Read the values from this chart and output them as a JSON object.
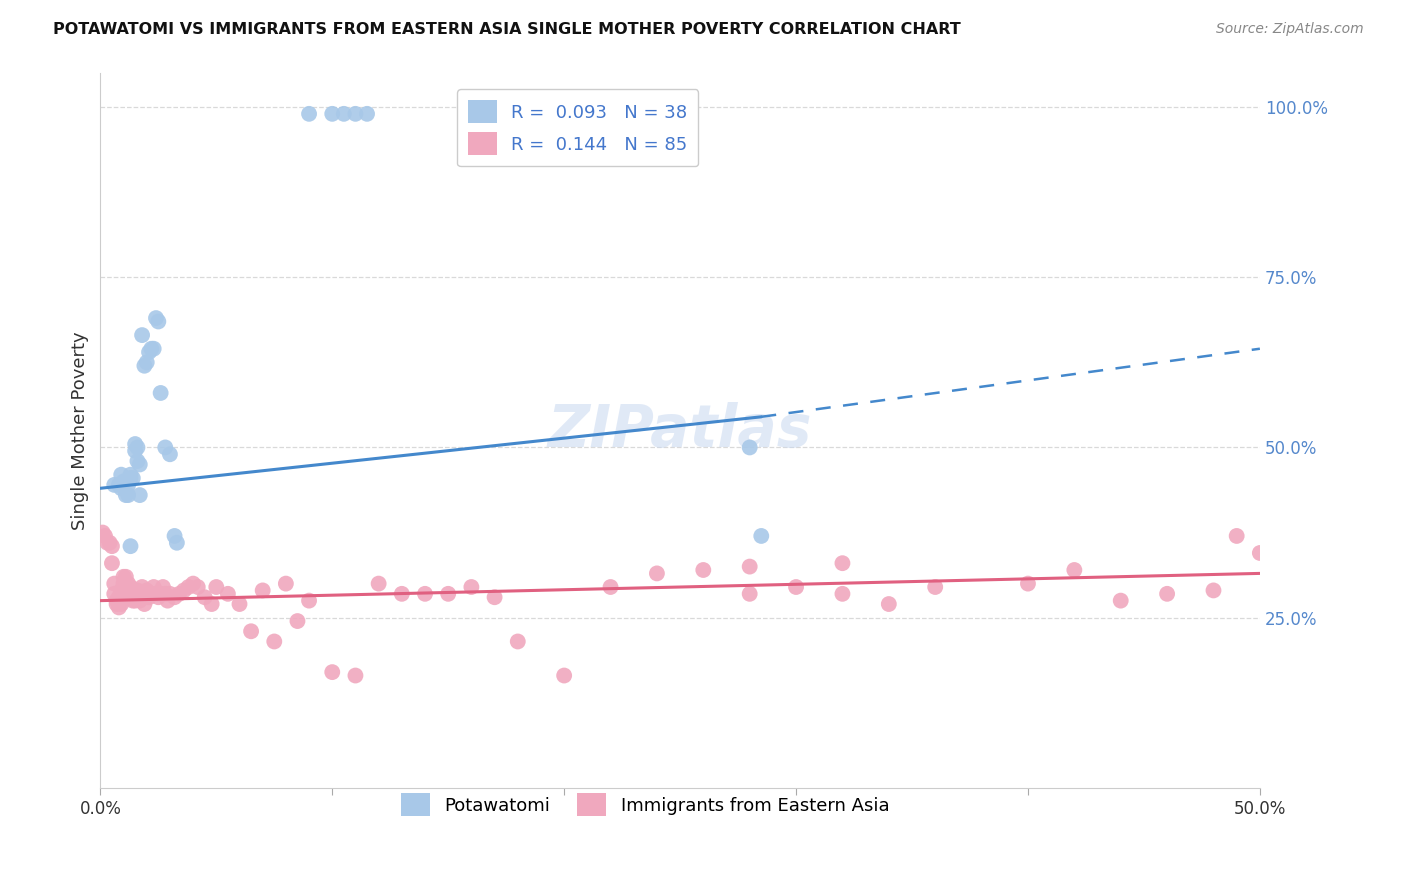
{
  "title": "POTAWATOMI VS IMMIGRANTS FROM EASTERN ASIA SINGLE MOTHER POVERTY CORRELATION CHART",
  "source": "Source: ZipAtlas.com",
  "ylabel": "Single Mother Poverty",
  "xlim": [
    0.0,
    0.5
  ],
  "ylim": [
    0.0,
    1.05
  ],
  "right_yticks": [
    0.0,
    0.25,
    0.5,
    0.75,
    1.0
  ],
  "right_yticklabels": [
    "",
    "25.0%",
    "50.0%",
    "75.0%",
    "100.0%"
  ],
  "potawatomi_R": 0.093,
  "potawatomi_N": 38,
  "eastern_asia_R": 0.144,
  "eastern_asia_N": 85,
  "blue_color": "#a8c8e8",
  "blue_line_color": "#4488cc",
  "pink_color": "#f0a8be",
  "pink_line_color": "#e06080",
  "legend_label_1": "Potawatomi",
  "legend_label_2": "Immigrants from Eastern Asia",
  "background_color": "#ffffff",
  "grid_color": "#d0d0d0",
  "blue_line_x0": 0.0,
  "blue_line_y0": 0.44,
  "blue_line_x1_solid": 0.285,
  "blue_line_y1_solid": 0.545,
  "blue_line_x1_dash": 0.5,
  "blue_line_y1_dash": 0.645,
  "pink_line_x0": 0.0,
  "pink_line_y0": 0.275,
  "pink_line_x1": 0.5,
  "pink_line_y1": 0.315,
  "potawatomi_x": [
    0.006,
    0.008,
    0.009,
    0.009,
    0.01,
    0.011,
    0.012,
    0.012,
    0.013,
    0.013,
    0.014,
    0.015,
    0.015,
    0.016,
    0.016,
    0.017,
    0.018,
    0.019,
    0.02,
    0.021,
    0.022,
    0.023,
    0.024,
    0.025,
    0.026,
    0.028,
    0.03,
    0.032,
    0.033,
    0.09,
    0.1,
    0.105,
    0.11,
    0.115,
    0.28,
    0.285,
    0.017,
    0.013
  ],
  "potawatomi_y": [
    0.445,
    0.445,
    0.46,
    0.44,
    0.45,
    0.43,
    0.445,
    0.43,
    0.46,
    0.455,
    0.455,
    0.505,
    0.495,
    0.5,
    0.48,
    0.475,
    0.665,
    0.62,
    0.625,
    0.64,
    0.645,
    0.645,
    0.69,
    0.685,
    0.58,
    0.5,
    0.49,
    0.37,
    0.36,
    0.99,
    0.99,
    0.99,
    0.99,
    0.99,
    0.5,
    0.37,
    0.43,
    0.355
  ],
  "eastern_asia_x": [
    0.001,
    0.002,
    0.003,
    0.004,
    0.005,
    0.005,
    0.006,
    0.006,
    0.007,
    0.007,
    0.008,
    0.008,
    0.008,
    0.009,
    0.009,
    0.009,
    0.01,
    0.01,
    0.01,
    0.011,
    0.012,
    0.013,
    0.013,
    0.014,
    0.015,
    0.015,
    0.016,
    0.017,
    0.018,
    0.019,
    0.02,
    0.021,
    0.022,
    0.023,
    0.024,
    0.025,
    0.026,
    0.027,
    0.028,
    0.029,
    0.03,
    0.032,
    0.034,
    0.036,
    0.038,
    0.04,
    0.042,
    0.045,
    0.048,
    0.05,
    0.055,
    0.06,
    0.065,
    0.07,
    0.075,
    0.08,
    0.085,
    0.09,
    0.1,
    0.11,
    0.12,
    0.13,
    0.14,
    0.15,
    0.16,
    0.17,
    0.18,
    0.2,
    0.22,
    0.24,
    0.26,
    0.28,
    0.3,
    0.32,
    0.34,
    0.36,
    0.4,
    0.42,
    0.44,
    0.46,
    0.48,
    0.49,
    0.5,
    0.32,
    0.28
  ],
  "eastern_asia_y": [
    0.375,
    0.37,
    0.36,
    0.36,
    0.355,
    0.33,
    0.3,
    0.285,
    0.27,
    0.275,
    0.265,
    0.28,
    0.275,
    0.27,
    0.275,
    0.29,
    0.3,
    0.31,
    0.285,
    0.31,
    0.3,
    0.295,
    0.285,
    0.275,
    0.285,
    0.275,
    0.29,
    0.275,
    0.295,
    0.27,
    0.29,
    0.28,
    0.285,
    0.295,
    0.285,
    0.28,
    0.285,
    0.295,
    0.285,
    0.275,
    0.285,
    0.28,
    0.285,
    0.29,
    0.295,
    0.3,
    0.295,
    0.28,
    0.27,
    0.295,
    0.285,
    0.27,
    0.23,
    0.29,
    0.215,
    0.3,
    0.245,
    0.275,
    0.17,
    0.165,
    0.3,
    0.285,
    0.285,
    0.285,
    0.295,
    0.28,
    0.215,
    0.165,
    0.295,
    0.315,
    0.32,
    0.285,
    0.295,
    0.285,
    0.27,
    0.295,
    0.3,
    0.32,
    0.275,
    0.285,
    0.29,
    0.37,
    0.345,
    0.33,
    0.325
  ]
}
